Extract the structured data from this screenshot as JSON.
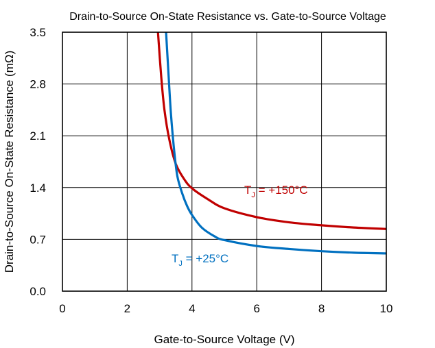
{
  "chart_data": {
    "type": "line",
    "title": "Drain-to-Source On-State Resistance vs. Gate-to-Source Voltage",
    "xlabel": "Gate-to-Source Voltage (V)",
    "ylabel": "Drain-to-Source On-State Resistance (mΩ)",
    "xlim": [
      0,
      10
    ],
    "ylim": [
      0,
      3.5
    ],
    "xticks": [
      "0",
      "2",
      "4",
      "6",
      "8",
      "10"
    ],
    "yticks": [
      "0.0",
      "0.7",
      "1.4",
      "2.1",
      "2.8",
      "3.5"
    ],
    "grid": true,
    "series": [
      {
        "name": "TJ = +150°C",
        "label_parts": {
          "main": "T",
          "sub": "J",
          "rest": " = +150°C"
        },
        "color": "#c00000",
        "x": [
          2.95,
          3.05,
          3.15,
          3.3,
          3.5,
          3.75,
          4.0,
          4.5,
          5.0,
          6.0,
          7.0,
          8.0,
          9.0,
          10.0
        ],
        "y": [
          3.5,
          2.9,
          2.45,
          2.05,
          1.72,
          1.52,
          1.39,
          1.24,
          1.12,
          1.0,
          0.93,
          0.89,
          0.86,
          0.84
        ]
      },
      {
        "name": "TJ = +25°C",
        "label_parts": {
          "main": "T",
          "sub": "J",
          "rest": " = +25°C"
        },
        "color": "#0070c0",
        "x": [
          3.2,
          3.28,
          3.35,
          3.45,
          3.55,
          3.7,
          3.85,
          4.0,
          4.3,
          4.7,
          5.0,
          6.0,
          7.0,
          8.0,
          9.0,
          10.0
        ],
        "y": [
          3.5,
          2.9,
          2.4,
          1.9,
          1.55,
          1.32,
          1.15,
          1.03,
          0.86,
          0.74,
          0.69,
          0.61,
          0.57,
          0.54,
          0.52,
          0.51
        ]
      }
    ]
  }
}
